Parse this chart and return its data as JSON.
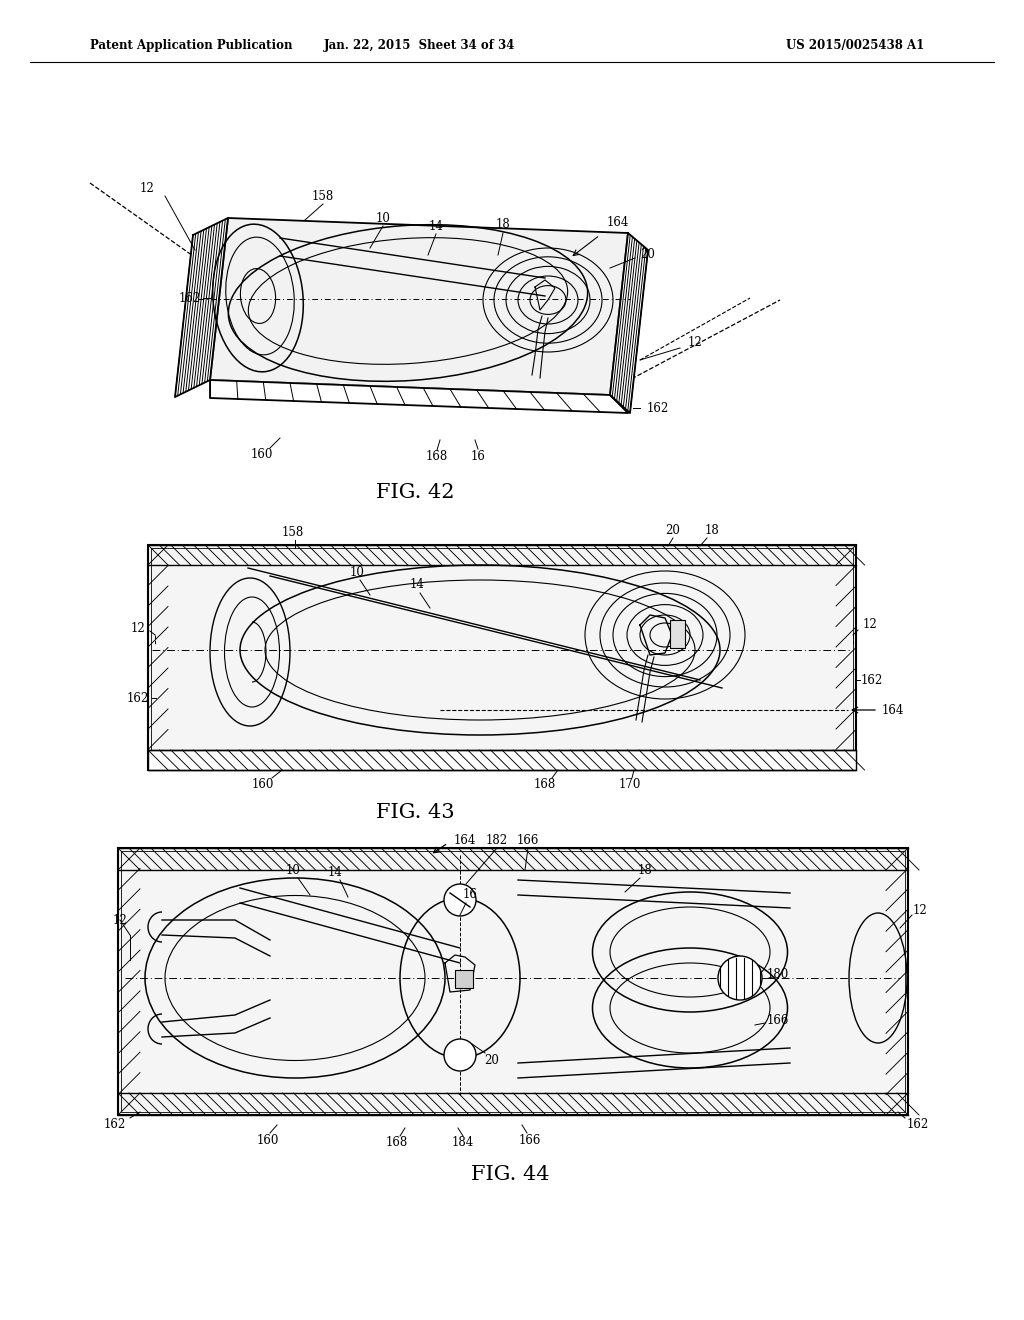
{
  "background_color": "#ffffff",
  "header_left": "Patent Application Publication",
  "header_middle": "Jan. 22, 2015  Sheet 34 of 34",
  "header_right": "US 2015/0025438 A1",
  "fig42_caption": "FIG. 42",
  "fig43_caption": "FIG. 43",
  "fig44_caption": "FIG. 44"
}
